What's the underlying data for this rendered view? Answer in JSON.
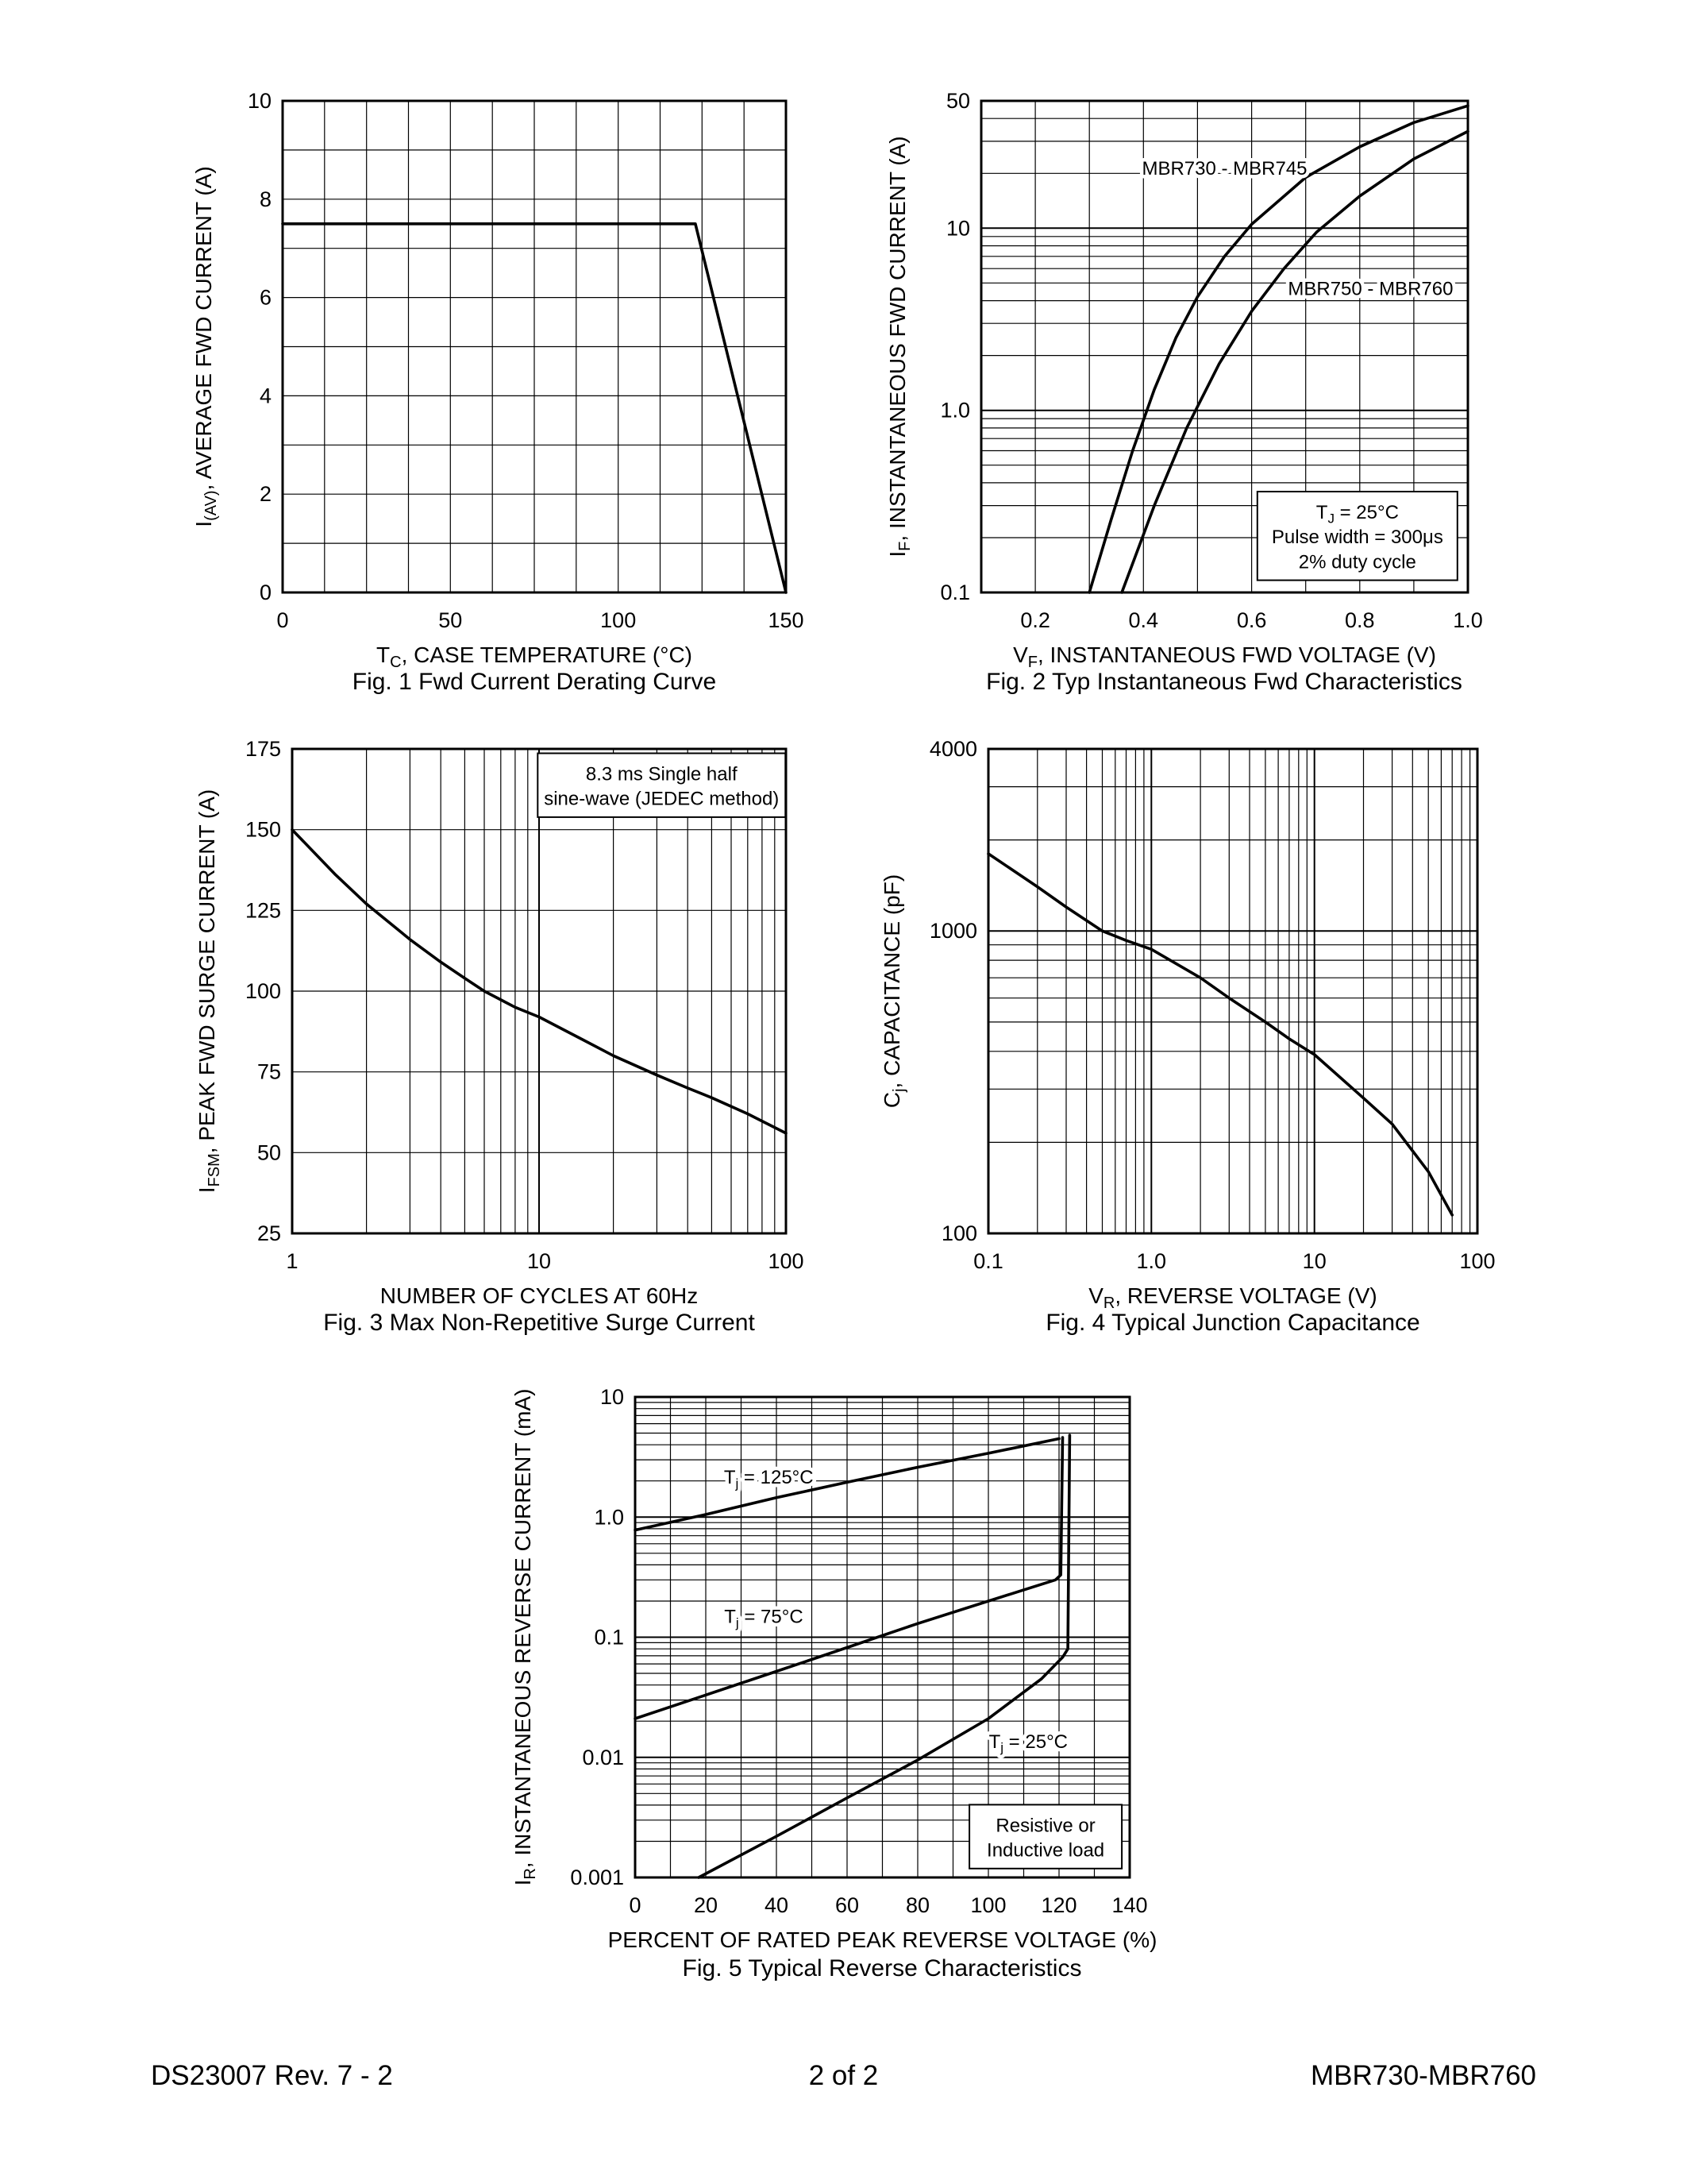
{
  "page": {
    "footer": {
      "left": "DS23007 Rev. 7 - 2",
      "center": "2 of 2",
      "right": "MBR730-MBR760"
    }
  },
  "chart_data": [
    {
      "id": "fig1",
      "type": "line",
      "title": "Fig. 1  Fwd Current Derating Curve",
      "xlabel": [
        [
          "T"
        ],
        [
          "C",
          "sub"
        ],
        [
          ", CASE TEMPERATURE (°C)"
        ]
      ],
      "ylabel": [
        [
          "I"
        ],
        [
          "(AV)",
          "sub"
        ],
        [
          ", AVERAGE FWD CURRENT (A)"
        ]
      ],
      "xscale": "linear",
      "yscale": "linear",
      "xlim": [
        0,
        150
      ],
      "ylim": [
        0,
        10
      ],
      "xgrid_step": 12.5,
      "ygrid_step": 1,
      "xticks": [
        [
          0,
          "0"
        ],
        [
          50,
          "50"
        ],
        [
          100,
          "100"
        ],
        [
          150,
          "150"
        ]
      ],
      "yticks": [
        [
          0,
          "0"
        ],
        [
          2,
          "2"
        ],
        [
          4,
          "4"
        ],
        [
          6,
          "6"
        ],
        [
          8,
          "8"
        ],
        [
          10,
          "10"
        ]
      ],
      "series": [
        {
          "name": "derating-curve",
          "x": [
            0,
            123,
            150
          ],
          "y": [
            7.5,
            7.5,
            0
          ]
        }
      ],
      "annotations": []
    },
    {
      "id": "fig2",
      "type": "line",
      "title": "Fig. 2  Typ Instantaneous Fwd Characteristics",
      "xlabel": [
        [
          "V"
        ],
        [
          "F",
          "sub"
        ],
        [
          ", INSTANTANEOUS FWD VOLTAGE (V)"
        ]
      ],
      "ylabel": [
        [
          "I"
        ],
        [
          "F",
          "sub"
        ],
        [
          ", INSTANTANEOUS FWD CURRENT (A)"
        ]
      ],
      "xscale": "linear",
      "yscale": "log",
      "xlim": [
        0.1,
        1.0
      ],
      "ylim": [
        0.1,
        50
      ],
      "xgrid_step": 0.1,
      "xticks": [
        [
          0.2,
          "0.2"
        ],
        [
          0.4,
          "0.4"
        ],
        [
          0.6,
          "0.6"
        ],
        [
          0.8,
          "0.8"
        ],
        [
          1.0,
          "1.0"
        ]
      ],
      "yticks": [
        [
          0.1,
          "0.1"
        ],
        [
          1.0,
          "1.0"
        ],
        [
          10,
          "10"
        ],
        [
          50,
          "50"
        ]
      ],
      "series": [
        {
          "name": "MBR730-MBR745",
          "x": [
            0.3,
            0.34,
            0.38,
            0.42,
            0.46,
            0.5,
            0.55,
            0.6,
            0.7,
            0.8,
            0.9,
            1.0
          ],
          "y": [
            0.1,
            0.25,
            0.6,
            1.3,
            2.5,
            4.2,
            7.0,
            10.5,
            19,
            28,
            38,
            47
          ]
        },
        {
          "name": "MBR750-MBR760",
          "x": [
            0.36,
            0.42,
            0.48,
            0.54,
            0.6,
            0.66,
            0.72,
            0.8,
            0.9,
            1.0
          ],
          "y": [
            0.1,
            0.3,
            0.8,
            1.8,
            3.5,
            6.0,
            9.5,
            15,
            24,
            34
          ]
        }
      ],
      "annotations": [
        {
          "lines": [
            [
              [
                "MBR730 - MBR745"
              ]
            ]
          ],
          "fx": 0.5,
          "fy": 0.135,
          "boxed": false
        },
        {
          "lines": [
            [
              [
                "MBR750 - MBR760"
              ]
            ]
          ],
          "fx": 0.8,
          "fy": 0.38,
          "boxed": false
        },
        {
          "lines": [
            [
              [
                "T"
              ],
              [
                "J",
                "sub"
              ],
              [
                " = 25°C"
              ]
            ],
            [
              [
                "Pulse width = 300μs"
              ]
            ],
            [
              [
                "2% duty cycle"
              ]
            ]
          ],
          "fx": 0.773,
          "fy": 0.885,
          "boxed": true
        }
      ]
    },
    {
      "id": "fig3",
      "type": "line",
      "title": "Fig. 3  Max Non-Repetitive Surge Current",
      "xlabel": [
        [
          "NUMBER OF CYCLES AT 60Hz"
        ]
      ],
      "ylabel": [
        [
          "I"
        ],
        [
          "FSM",
          "sub"
        ],
        [
          ", PEAK FWD SURGE CURRENT (A)"
        ]
      ],
      "xscale": "log",
      "yscale": "linear",
      "xlim": [
        1,
        100
      ],
      "ylim": [
        25,
        175
      ],
      "ygrid_step": 25,
      "xticks": [
        [
          1,
          "1"
        ],
        [
          10,
          "10"
        ],
        [
          100,
          "100"
        ]
      ],
      "yticks": [
        [
          25,
          "25"
        ],
        [
          50,
          "50"
        ],
        [
          75,
          "75"
        ],
        [
          100,
          "100"
        ],
        [
          125,
          "125"
        ],
        [
          150,
          "150"
        ],
        [
          175,
          "175"
        ]
      ],
      "series": [
        {
          "name": "surge-current",
          "x": [
            1,
            1.5,
            2,
            3,
            4,
            5,
            6,
            8,
            10,
            15,
            20,
            30,
            40,
            50,
            70,
            100
          ],
          "y": [
            150,
            136,
            127,
            116,
            109,
            104,
            100,
            95,
            92,
            85,
            80,
            74,
            70,
            67,
            62,
            56
          ]
        }
      ],
      "annotations": [
        {
          "lines": [
            [
              [
                "8.3 ms Single half"
              ]
            ],
            [
              [
                "sine-wave (JEDEC method)"
              ]
            ]
          ],
          "fx": 0.748,
          "fy": 0.075,
          "boxed": true
        }
      ]
    },
    {
      "id": "fig4",
      "type": "line",
      "title": "Fig. 4  Typical Junction Capacitance",
      "xlabel": [
        [
          "V"
        ],
        [
          "R",
          "sub"
        ],
        [
          ", REVERSE VOLTAGE (V)"
        ]
      ],
      "ylabel": [
        [
          "C"
        ],
        [
          "j",
          "sub"
        ],
        [
          ", CAPACITANCE (pF)"
        ]
      ],
      "xscale": "log",
      "yscale": "log",
      "xlim": [
        0.1,
        100
      ],
      "ylim": [
        100,
        4000
      ],
      "xticks": [
        [
          0.1,
          "0.1"
        ],
        [
          1.0,
          "1.0"
        ],
        [
          10,
          "10"
        ],
        [
          100,
          "100"
        ]
      ],
      "yticks": [
        [
          100,
          "100"
        ],
        [
          1000,
          "1000"
        ],
        [
          4000,
          "4000"
        ]
      ],
      "series": [
        {
          "name": "junction-capacitance",
          "x": [
            0.1,
            0.2,
            0.3,
            0.5,
            0.7,
            1.0,
            2,
            3,
            5,
            7,
            10,
            20,
            30,
            50,
            70
          ],
          "y": [
            1800,
            1400,
            1200,
            1000,
            930,
            870,
            700,
            600,
            500,
            440,
            390,
            280,
            230,
            160,
            115
          ]
        }
      ],
      "annotations": []
    },
    {
      "id": "fig5",
      "type": "line",
      "title": "Fig. 5  Typical Reverse Characteristics",
      "xlabel": [
        [
          "PERCENT OF RATED PEAK REVERSE VOLTAGE (%)"
        ]
      ],
      "ylabel": [
        [
          "I"
        ],
        [
          "R",
          "sub"
        ],
        [
          ", INSTANTANEOUS REVERSE CURRENT (mA)"
        ]
      ],
      "xscale": "linear",
      "yscale": "log",
      "xlim": [
        0,
        140
      ],
      "ylim": [
        0.001,
        10
      ],
      "xgrid_step": 10,
      "xticks": [
        [
          0,
          "0"
        ],
        [
          20,
          "20"
        ],
        [
          40,
          "40"
        ],
        [
          60,
          "60"
        ],
        [
          80,
          "80"
        ],
        [
          100,
          "100"
        ],
        [
          120,
          "120"
        ],
        [
          140,
          "140"
        ]
      ],
      "yticks": [
        [
          0.001,
          "0.001"
        ],
        [
          0.01,
          "0.01"
        ],
        [
          0.1,
          "0.1"
        ],
        [
          1.0,
          "1.0"
        ],
        [
          10,
          "10"
        ]
      ],
      "series": [
        {
          "name": "tj-125C",
          "x": [
            0,
            20,
            40,
            60,
            80,
            100,
            120
          ],
          "y": [
            0.78,
            1.05,
            1.45,
            1.95,
            2.6,
            3.4,
            4.5
          ]
        },
        {
          "name": "tj-75C",
          "x": [
            0,
            20,
            40,
            60,
            80,
            100,
            119,
            120.5,
            121
          ],
          "y": [
            0.021,
            0.033,
            0.052,
            0.082,
            0.13,
            0.2,
            0.3,
            0.33,
            4.6
          ]
        },
        {
          "name": "tj-25C",
          "x": [
            18,
            40,
            60,
            80,
            100,
            115,
            121,
            122.5,
            123
          ],
          "y": [
            0.001,
            0.0022,
            0.0046,
            0.0095,
            0.021,
            0.045,
            0.068,
            0.08,
            4.8
          ]
        }
      ],
      "annotations": [
        {
          "lines": [
            [
              [
                "T"
              ],
              [
                "j",
                "sub"
              ],
              [
                " = 125°C"
              ]
            ]
          ],
          "fx": 0.27,
          "fy": 0.165,
          "boxed": false
        },
        {
          "lines": [
            [
              [
                "T"
              ],
              [
                "j",
                "sub"
              ],
              [
                " = 75°C"
              ]
            ]
          ],
          "fx": 0.26,
          "fy": 0.455,
          "boxed": false
        },
        {
          "lines": [
            [
              [
                "T"
              ],
              [
                "j",
                "sub"
              ],
              [
                " = 25°C"
              ]
            ]
          ],
          "fx": 0.795,
          "fy": 0.715,
          "boxed": false
        },
        {
          "lines": [
            [
              [
                "Resistive or"
              ]
            ],
            [
              [
                "Inductive load"
              ]
            ]
          ],
          "fx": 0.83,
          "fy": 0.915,
          "boxed": true
        }
      ]
    }
  ]
}
